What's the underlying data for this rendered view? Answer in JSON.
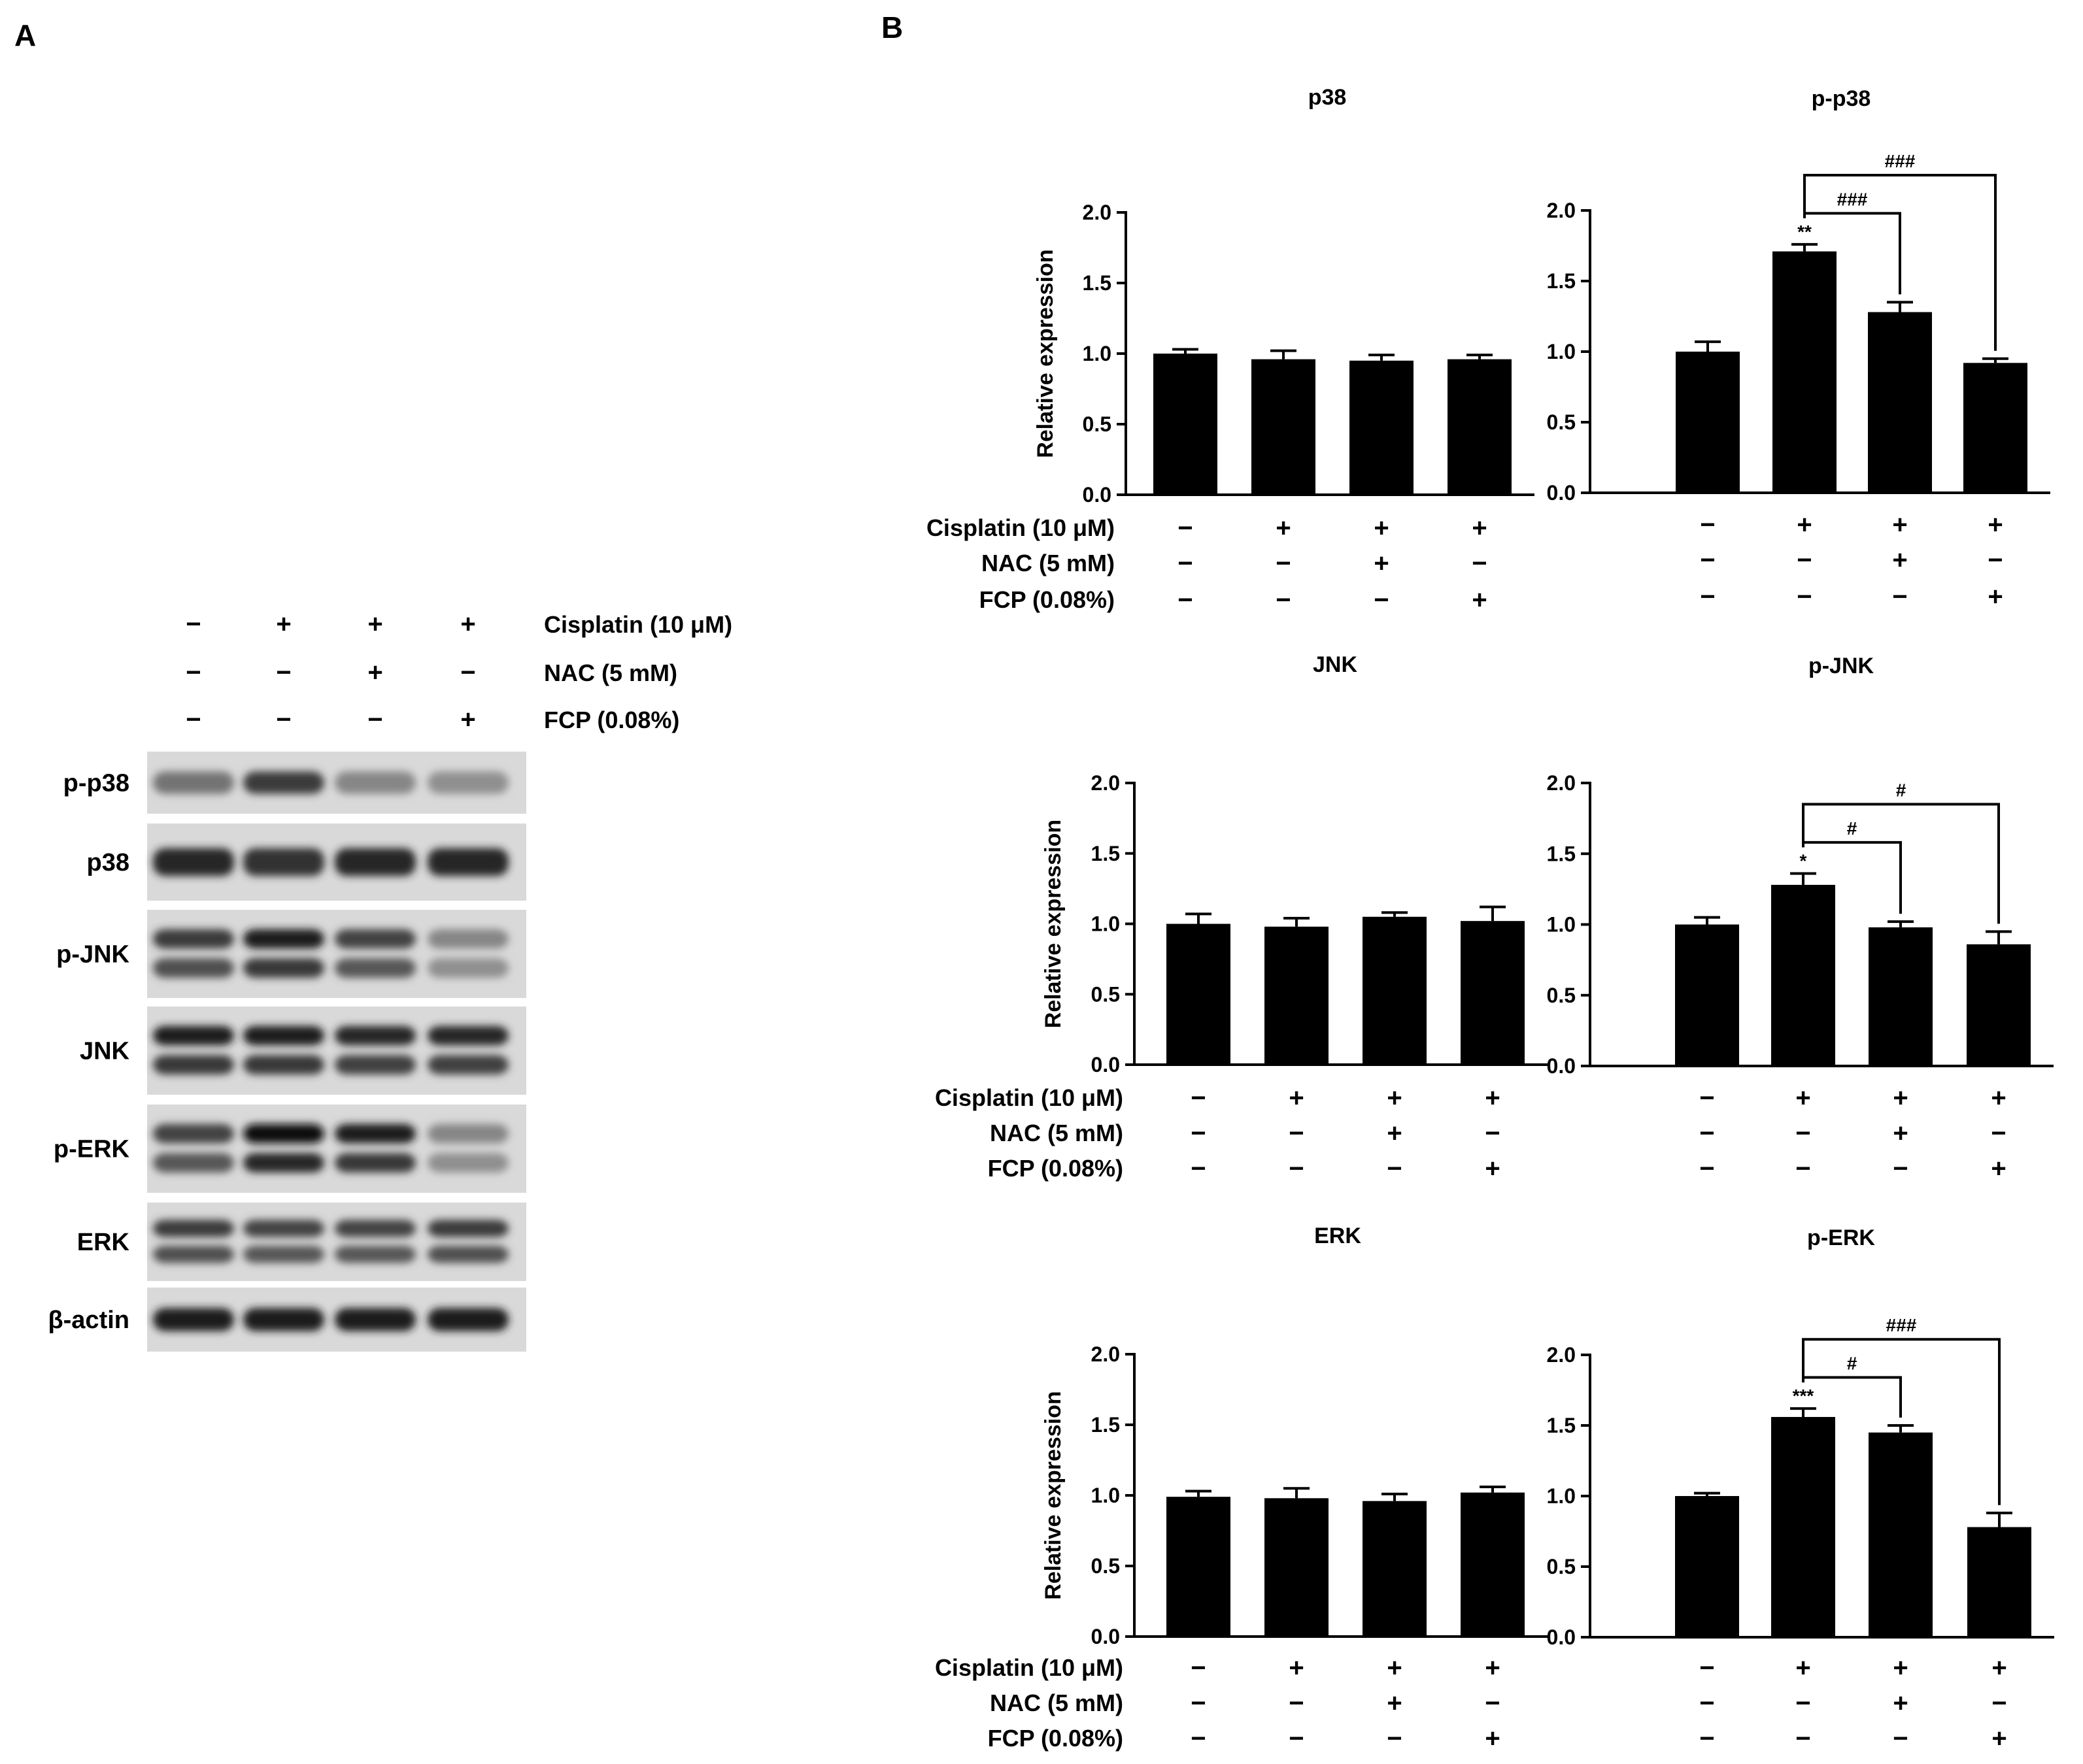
{
  "panel_a": {
    "label": "A",
    "header": [
      {
        "label": "Cisplatin (10 μM)",
        "signs": [
          "−",
          "+",
          "+",
          "+"
        ]
      },
      {
        "label": "NAC (5 mM)",
        "signs": [
          "−",
          "−",
          "+",
          "−"
        ]
      },
      {
        "label": "FCP (0.08%)",
        "signs": [
          "−",
          "−",
          "−",
          "+"
        ]
      }
    ],
    "blots": [
      {
        "label": "p-p38",
        "intensity": [
          0.45,
          0.75,
          0.35,
          0.3
        ],
        "bands": 1
      },
      {
        "label": "p38",
        "intensity": [
          0.85,
          0.8,
          0.85,
          0.85
        ],
        "bands": 1
      },
      {
        "label": "p-JNK",
        "intensity": [
          0.75,
          0.9,
          0.7,
          0.35
        ],
        "bands": 2
      },
      {
        "label": "JNK",
        "intensity": [
          0.9,
          0.9,
          0.85,
          0.85
        ],
        "bands": 2
      },
      {
        "label": "p-ERK",
        "intensity": [
          0.7,
          1.0,
          0.9,
          0.35
        ],
        "bands": 2
      },
      {
        "label": "ERK",
        "intensity": [
          0.75,
          0.7,
          0.7,
          0.75
        ],
        "bands": 2
      },
      {
        "label": "β-actin",
        "intensity": [
          0.9,
          0.9,
          0.9,
          0.9
        ],
        "bands": 1
      }
    ]
  },
  "panel_b": {
    "label": "B",
    "ylabel": "Relative expression",
    "conditions": [
      {
        "label": "Cisplatin (10 μM)",
        "signs": [
          "−",
          "+",
          "+",
          "+"
        ]
      },
      {
        "label": "NAC (5 mM)",
        "signs": [
          "−",
          "−",
          "+",
          "−"
        ]
      },
      {
        "label": "FCP (0.08%)",
        "signs": [
          "−",
          "−",
          "−",
          "+"
        ]
      }
    ]
  },
  "chart_data": [
    {
      "type": "bar",
      "title": "p38",
      "ylabel": "Relative expression",
      "ylim": [
        0,
        2.0
      ],
      "yticks": [
        "0.0",
        "0.5",
        "1.0",
        "1.5",
        "2.0"
      ],
      "values": [
        1.0,
        0.96,
        0.95,
        0.96
      ],
      "errors": [
        0.03,
        0.06,
        0.04,
        0.03
      ],
      "stars": [
        "",
        "",
        "",
        ""
      ],
      "brackets": []
    },
    {
      "type": "bar",
      "title": "p-p38",
      "ylabel": "",
      "ylim": [
        0,
        2.0
      ],
      "yticks": [
        "0.0",
        "0.5",
        "1.0",
        "1.5",
        "2.0"
      ],
      "values": [
        1.0,
        1.71,
        1.28,
        0.92
      ],
      "errors": [
        0.07,
        0.05,
        0.07,
        0.03
      ],
      "stars": [
        "",
        "**",
        "",
        ""
      ],
      "brackets": [
        {
          "from": 1,
          "to": 2,
          "text": "###"
        },
        {
          "from": 1,
          "to": 3,
          "text": "###"
        }
      ]
    },
    {
      "type": "bar",
      "title": "JNK",
      "ylabel": "Relative expression",
      "ylim": [
        0,
        2.0
      ],
      "yticks": [
        "0.0",
        "0.5",
        "1.0",
        "1.5",
        "2.0"
      ],
      "values": [
        1.0,
        0.98,
        1.05,
        1.02
      ],
      "errors": [
        0.07,
        0.06,
        0.03,
        0.1
      ],
      "stars": [
        "",
        "",
        "",
        ""
      ],
      "brackets": []
    },
    {
      "type": "bar",
      "title": "p-JNK",
      "ylabel": "",
      "ylim": [
        0,
        2.0
      ],
      "yticks": [
        "0.0",
        "0.5",
        "1.0",
        "1.5",
        "2.0"
      ],
      "values": [
        1.0,
        1.28,
        0.98,
        0.86
      ],
      "errors": [
        0.05,
        0.08,
        0.04,
        0.09
      ],
      "stars": [
        "",
        "*",
        "",
        ""
      ],
      "brackets": [
        {
          "from": 1,
          "to": 2,
          "text": "#"
        },
        {
          "from": 1,
          "to": 3,
          "text": "#"
        }
      ]
    },
    {
      "type": "bar",
      "title": "ERK",
      "ylabel": "Relative expression",
      "ylim": [
        0,
        2.0
      ],
      "yticks": [
        "0.0",
        "0.5",
        "1.0",
        "1.5",
        "2.0"
      ],
      "values": [
        0.99,
        0.98,
        0.96,
        1.02
      ],
      "errors": [
        0.04,
        0.07,
        0.05,
        0.04
      ],
      "stars": [
        "",
        "",
        "",
        ""
      ],
      "brackets": []
    },
    {
      "type": "bar",
      "title": "p-ERK",
      "ylabel": "",
      "ylim": [
        0,
        2.0
      ],
      "yticks": [
        "0.0",
        "0.5",
        "1.0",
        "1.5",
        "2.0"
      ],
      "values": [
        1.0,
        1.56,
        1.45,
        0.78
      ],
      "errors": [
        0.02,
        0.06,
        0.05,
        0.1
      ],
      "stars": [
        "",
        "***",
        "",
        ""
      ],
      "brackets": [
        {
          "from": 1,
          "to": 2,
          "text": "#"
        },
        {
          "from": 1,
          "to": 3,
          "text": "###"
        }
      ]
    }
  ]
}
